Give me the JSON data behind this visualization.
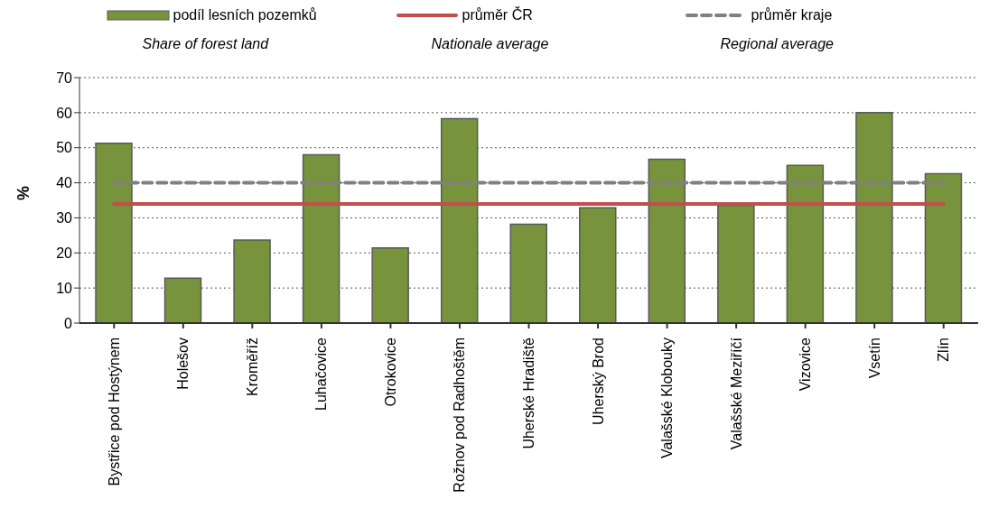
{
  "chart_data": {
    "type": "bar",
    "ylabel": "%",
    "categories": [
      "Bystřice pod Hostýnem",
      "Holešov",
      "Kroměříž",
      "Luhačovice",
      "Otrokovice",
      "Rožnov pod Radhoštěm",
      "Uherské Hradiště",
      "Uherský Brod",
      "Valašské Klobouky",
      "Valašské Meziříčí",
      "Vizovice",
      "Vsetín",
      "Zlín"
    ],
    "series": [
      {
        "name": "podíl lesních pozemků",
        "color": "#77933c",
        "values": [
          51.3,
          12.8,
          23.7,
          48,
          21.4,
          58.3,
          28.2,
          32.9,
          46.7,
          33.5,
          45,
          60,
          42.6
        ]
      },
      {
        "name": "průměr ČR",
        "type": "line",
        "color": "#c0504d",
        "line_style": "solid",
        "values": [
          34,
          34,
          34,
          34,
          34,
          34,
          34,
          34,
          34,
          34,
          34,
          34,
          34
        ]
      },
      {
        "name": "průměr kraje",
        "type": "line",
        "color": "#808080",
        "line_style": "dashed",
        "values": [
          40,
          40,
          40,
          40,
          40,
          40,
          40,
          40,
          40,
          40,
          40,
          40,
          40
        ]
      }
    ],
    "annotations": [
      "Share of forest land",
      "Nationale average",
      "Regional average"
    ],
    "ylim": [
      0,
      70
    ],
    "yticks": [
      0,
      10,
      20,
      30,
      40,
      50,
      60,
      70
    ],
    "grid": "y",
    "legend": "top",
    "marker": "none"
  }
}
